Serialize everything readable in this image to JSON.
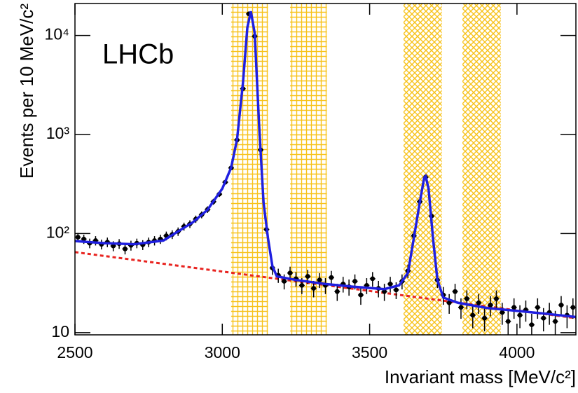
{
  "chart_data": {
    "type": "scatter",
    "annotation": "LHCb",
    "xlabel": "Invariant mass [MeV/c²]",
    "ylabel": "Events per 10 MeV/c²",
    "xlim": [
      2500,
      4200
    ],
    "ylim": [
      9.5,
      21000
    ],
    "log_y": true,
    "xticks": [
      2500,
      3000,
      3500,
      4000
    ],
    "yticks": [
      10,
      {
        "value": 100,
        "label": "10²"
      },
      {
        "value": 1000,
        "label": "10³"
      },
      {
        "value": 10000,
        "label": "10⁴"
      }
    ],
    "regions": [
      {
        "x0": 3030,
        "x1": 3155,
        "pattern": "grid"
      },
      {
        "x0": 3230,
        "x1": 3355,
        "pattern": "grid"
      },
      {
        "x0": 3615,
        "x1": 3745,
        "pattern": "cross"
      },
      {
        "x0": 3815,
        "x1": 3945,
        "pattern": "cross"
      }
    ],
    "region_color": "#f7c21a",
    "points": {
      "color": "#000000",
      "x": [
        2510,
        2530,
        2550,
        2570,
        2590,
        2610,
        2630,
        2650,
        2670,
        2690,
        2710,
        2730,
        2750,
        2770,
        2790,
        2810,
        2830,
        2850,
        2870,
        2890,
        2910,
        2930,
        2950,
        2970,
        2990,
        3010,
        3030,
        3050,
        3070,
        3090,
        3110,
        3130,
        3150,
        3170,
        3190,
        3210,
        3230,
        3250,
        3270,
        3290,
        3310,
        3330,
        3350,
        3370,
        3390,
        3410,
        3430,
        3450,
        3470,
        3490,
        3510,
        3530,
        3550,
        3570,
        3590,
        3610,
        3630,
        3650,
        3670,
        3690,
        3710,
        3730,
        3750,
        3770,
        3790,
        3810,
        3830,
        3850,
        3870,
        3890,
        3910,
        3930,
        3950,
        3970,
        3990,
        4010,
        4030,
        4050,
        4070,
        4090,
        4110,
        4130,
        4150,
        4170,
        4190
      ],
      "values": [
        92,
        88,
        80,
        85,
        78,
        82,
        75,
        79,
        70,
        76,
        80,
        77,
        82,
        85,
        88,
        95,
        98,
        105,
        118,
        125,
        140,
        155,
        175,
        210,
        250,
        330,
        460,
        880,
        2900,
        16500,
        9800,
        700,
        110,
        45,
        38,
        33,
        40,
        35,
        30,
        37,
        28,
        34,
        30,
        36,
        26,
        31,
        29,
        33,
        24,
        30,
        35,
        28,
        26,
        31,
        27,
        33,
        42,
        95,
        210,
        370,
        150,
        34,
        24,
        20,
        26,
        18,
        22,
        15,
        20,
        14,
        19,
        22,
        16,
        13,
        18,
        15,
        17,
        12,
        18,
        14,
        16,
        13,
        19,
        15,
        18
      ],
      "errors": [
        9.6,
        9.4,
        8.9,
        9.2,
        8.8,
        9.1,
        8.7,
        8.9,
        8.4,
        8.7,
        8.9,
        8.8,
        9.1,
        9.2,
        9.4,
        9.7,
        9.9,
        10.2,
        10.9,
        11.2,
        11.8,
        12.4,
        13.2,
        14.5,
        15.8,
        18.2,
        21.4,
        29.7,
        53.9,
        128.5,
        99,
        26.5,
        10.5,
        6.7,
        6.2,
        5.7,
        6.3,
        5.9,
        5.5,
        6.1,
        5.3,
        5.8,
        5.5,
        6,
        5.1,
        5.6,
        5.4,
        5.7,
        4.9,
        5.5,
        5.9,
        5.3,
        5.1,
        5.6,
        5.2,
        5.7,
        6.5,
        9.7,
        14.5,
        19.2,
        12.2,
        5.8,
        4.9,
        4.5,
        5.1,
        4.2,
        4.7,
        3.9,
        4.5,
        3.7,
        4.4,
        4.7,
        4,
        3.6,
        4.2,
        3.9,
        4.1,
        3.5,
        4.2,
        3.7,
        4,
        3.6,
        4.4,
        3.9,
        4.2
      ]
    },
    "fit": {
      "color": "#1f1fe0",
      "x": [
        2500,
        2600,
        2700,
        2800,
        2900,
        2950,
        3000,
        3030,
        3050,
        3070,
        3085,
        3097,
        3110,
        3125,
        3140,
        3155,
        3170,
        3185,
        3250,
        3350,
        3450,
        3550,
        3600,
        3630,
        3650,
        3670,
        3685,
        3690,
        3700,
        3715,
        3730,
        3750,
        3800,
        3900,
        4000,
        4100,
        4200
      ],
      "values": [
        84,
        80,
        78,
        85,
        130,
        174,
        284,
        463,
        890,
        3300,
        12000,
        17500,
        10500,
        1230,
        205,
        90,
        47,
        37,
        34,
        31,
        29,
        27.5,
        30,
        40,
        90,
        205,
        365,
        380,
        284,
        90,
        34,
        22.6,
        20,
        17.7,
        16.6,
        15.5,
        14.4
      ]
    },
    "background": {
      "color": "#e8231f",
      "dashed": true,
      "x": [
        2500,
        4200
      ],
      "values": [
        65,
        14
      ]
    }
  }
}
